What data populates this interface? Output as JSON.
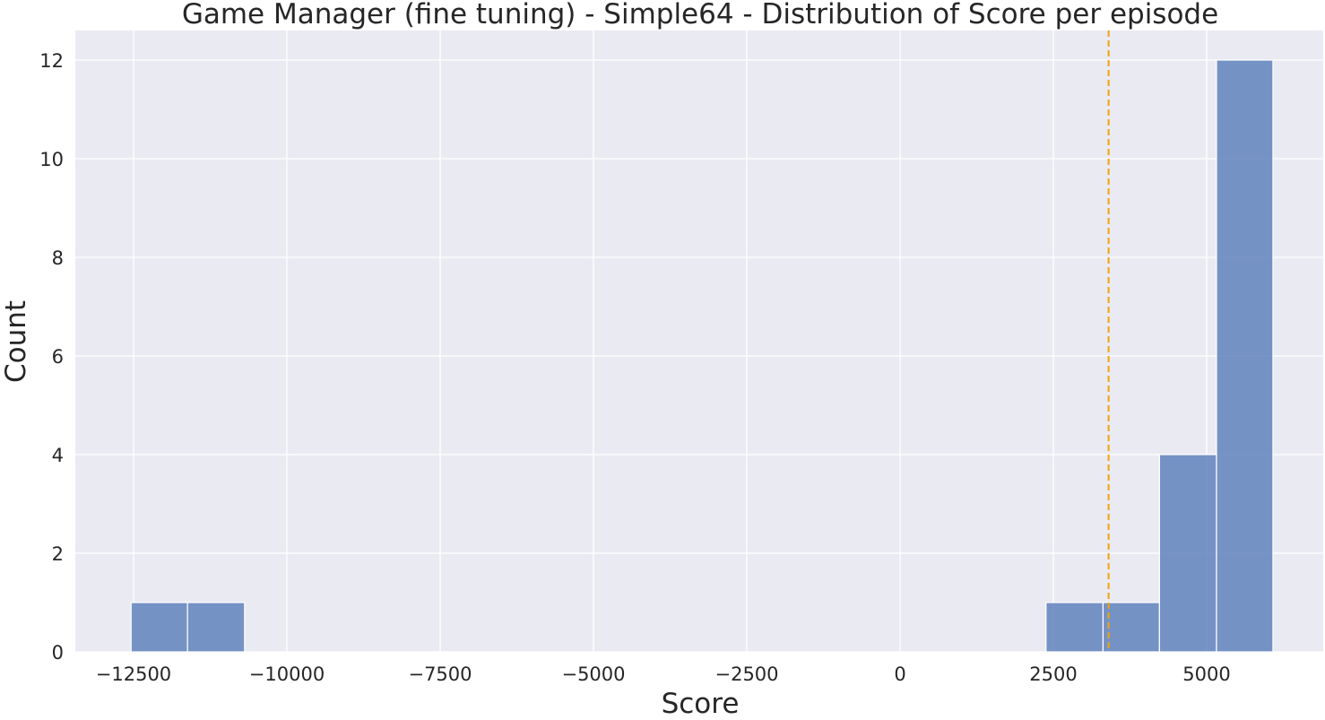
{
  "chart_data": {
    "type": "histogram",
    "title": "Game Manager (fine tuning) - Simple64 - Distribution of Score per episode",
    "xlabel": "Score",
    "ylabel": "Count",
    "xlim": [
      -13450,
      6900
    ],
    "ylim": [
      0,
      12.6
    ],
    "xticks": [
      -12500,
      -10000,
      -7500,
      -5000,
      -2500,
      0,
      2500,
      5000
    ],
    "xtick_labels": [
      "−12500",
      "−10000",
      "−7500",
      "−5000",
      "−2500",
      "0",
      "2500",
      "5000"
    ],
    "yticks": [
      0,
      2,
      4,
      6,
      8,
      10,
      12
    ],
    "ytick_labels": [
      "0",
      "2",
      "4",
      "6",
      "8",
      "10",
      "12"
    ],
    "bins": [
      {
        "x0": -12540,
        "x1": -11620,
        "count": 1
      },
      {
        "x0": -11620,
        "x1": -10690,
        "count": 1
      },
      {
        "x0": 2380,
        "x1": 3310,
        "count": 1
      },
      {
        "x0": 3310,
        "x1": 4230,
        "count": 1
      },
      {
        "x0": 4230,
        "x1": 5160,
        "count": 4
      },
      {
        "x0": 5160,
        "x1": 6080,
        "count": 12
      }
    ],
    "mean_line": {
      "x": 3400,
      "color": "#f0a30a",
      "style": "dashed"
    },
    "colors": {
      "bar": "#5b7fbb",
      "plot_bg": "#eaeaf2",
      "grid": "#ffffff"
    },
    "grid": true
  }
}
